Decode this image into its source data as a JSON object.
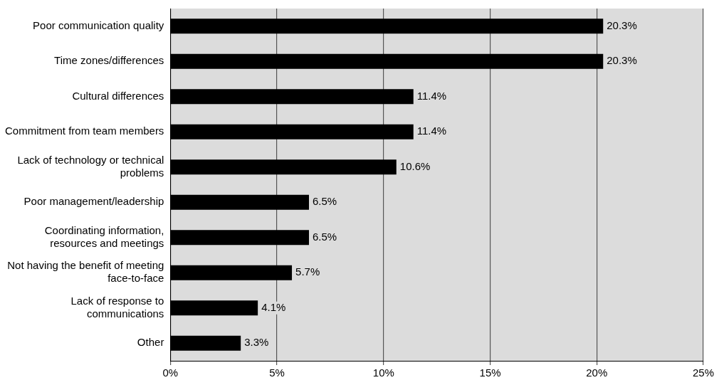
{
  "chart_data": {
    "type": "bar",
    "orientation": "horizontal",
    "categories": [
      "Poor communication quality",
      "Time zones/differences",
      "Cultural differences",
      "Commitment from team members",
      "Lack of technology or technical problems",
      "Poor management/leadership",
      "Coordinating information, resources and meetings",
      "Not having the benefit of meeting face-to-face",
      "Lack of response to communications",
      "Other"
    ],
    "values": [
      20.3,
      20.3,
      11.4,
      11.4,
      10.6,
      6.5,
      6.5,
      5.7,
      4.1,
      3.3
    ],
    "value_labels": [
      "20.3%",
      "20.3%",
      "11.4%",
      "11.4%",
      "10.6%",
      "6.5%",
      "6.5%",
      "5.7%",
      "4.1%",
      "3.3%"
    ],
    "color": "#000000",
    "xlim": [
      0,
      25
    ],
    "xticks": [
      {
        "value": 0,
        "label": "0%"
      },
      {
        "value": 5,
        "label": "5%"
      },
      {
        "value": 10,
        "label": "10%"
      },
      {
        "value": 15,
        "label": "15%"
      },
      {
        "value": 20,
        "label": "20%"
      },
      {
        "value": 25,
        "label": "25%"
      }
    ],
    "grid": "x",
    "legend": false
  }
}
